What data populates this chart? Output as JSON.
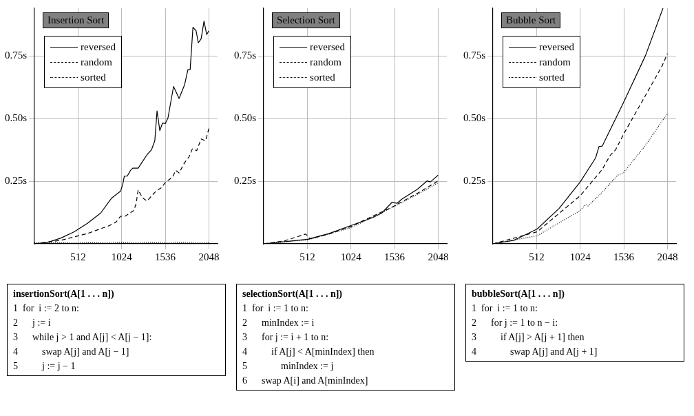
{
  "chart_data": [
    {
      "type": "line",
      "title": "Insertion Sort",
      "xlim": [
        0,
        2150
      ],
      "ylim": [
        0,
        0.94
      ],
      "xticks": [
        512,
        1024,
        1536,
        2048
      ],
      "yticks": [
        {
          "value": 0.25,
          "label": "0.25s"
        },
        {
          "value": 0.5,
          "label": "0.50s"
        },
        {
          "value": 0.75,
          "label": "0.75s"
        }
      ],
      "grid": true,
      "legend": "top left",
      "marker": "none",
      "series": [
        {
          "name": "reversed",
          "color": "#000000",
          "line_style": "solid",
          "x": [
            0,
            156,
            311,
            467,
            622,
            778,
            907,
            1011,
            1037,
            1055,
            1089,
            1128,
            1154,
            1218,
            1270,
            1322,
            1374,
            1413,
            1439,
            1472,
            1504,
            1537,
            1568,
            1633,
            1698,
            1763,
            1802,
            1828,
            1861,
            1898,
            1924,
            1957,
            1991,
            2022,
            2048
          ],
          "values": [
            0,
            0.006,
            0.023,
            0.048,
            0.082,
            0.123,
            0.183,
            0.21,
            0.238,
            0.27,
            0.27,
            0.293,
            0.302,
            0.302,
            0.329,
            0.356,
            0.375,
            0.411,
            0.53,
            0.452,
            0.482,
            0.48,
            0.503,
            0.628,
            0.58,
            0.635,
            0.695,
            0.695,
            0.864,
            0.85,
            0.802,
            0.818,
            0.889,
            0.835,
            0.85
          ]
        },
        {
          "name": "random",
          "color": "#000000",
          "line_style": "dashed",
          "x": [
            0,
            311,
            622,
            881,
            959,
            1011,
            1063,
            1167,
            1193,
            1218,
            1270,
            1322,
            1426,
            1491,
            1542,
            1620,
            1659,
            1698,
            1763,
            1815,
            1854,
            1905,
            1957,
            2009,
            2048
          ],
          "values": [
            0,
            0.014,
            0.041,
            0.073,
            0.087,
            0.11,
            0.11,
            0.133,
            0.16,
            0.215,
            0.183,
            0.171,
            0.21,
            0.224,
            0.247,
            0.265,
            0.293,
            0.283,
            0.324,
            0.347,
            0.379,
            0.372,
            0.418,
            0.411,
            0.46
          ]
        },
        {
          "name": "sorted",
          "color": "#000000",
          "line_style": "dotted",
          "x": [
            0,
            512,
            1024,
            1536,
            2048
          ],
          "values": [
            0.004,
            0.004,
            0.005,
            0.005,
            0.006
          ]
        }
      ],
      "annotations": [
        "insertionSort(A[1 . . . n])",
        "1  for  i := 2 to n:",
        "2      j := i",
        "3      while j > 1 and A[j] < A[j − 1]:",
        "4          swap A[j] and A[j − 1]",
        "5          j := j − 1"
      ]
    },
    {
      "type": "line",
      "title": "Selection Sort",
      "xlim": [
        0,
        2150
      ],
      "ylim": [
        0,
        0.94
      ],
      "xticks": [
        512,
        1024,
        1536,
        2048
      ],
      "yticks": [
        {
          "value": 0.25,
          "label": "0.25s"
        },
        {
          "value": 0.5,
          "label": "0.50s"
        },
        {
          "value": 0.75,
          "label": "0.75s"
        }
      ],
      "grid": true,
      "legend": "top left",
      "marker": "none",
      "series": [
        {
          "name": "reversed",
          "color": "#000000",
          "line_style": "solid",
          "x": [
            0,
            518,
            765,
            1024,
            1283,
            1387,
            1504,
            1568,
            1620,
            1802,
            1918,
            1957,
            2048
          ],
          "values": [
            0,
            0.018,
            0.041,
            0.073,
            0.105,
            0.123,
            0.165,
            0.162,
            0.178,
            0.217,
            0.251,
            0.247,
            0.274
          ]
        },
        {
          "name": "random",
          "color": "#000000",
          "line_style": "dashed",
          "x": [
            0,
            246,
            493,
            544,
            765,
            1024,
            1504,
            1802,
            2048
          ],
          "values": [
            0,
            0.012,
            0.039,
            0.02,
            0.039,
            0.069,
            0.146,
            0.201,
            0.251
          ]
        },
        {
          "name": "sorted",
          "color": "#000000",
          "line_style": "dotted",
          "x": [
            0,
            518,
            1024,
            1504,
            1802,
            2048
          ],
          "values": [
            0,
            0.016,
            0.064,
            0.144,
            0.197,
            0.244
          ]
        }
      ],
      "annotations": [
        "selectionSort(A[1 . . . n])",
        "1  for  i := 1 to n:",
        "2      minIndex := i",
        "3      for j := i + 1 to n:",
        "4          if A[j] < A[minIndex] then",
        "5              minIndex := j",
        "6      swap A[i] and A[minIndex]"
      ]
    },
    {
      "type": "line",
      "title": "Bubble Sort",
      "xlim": [
        0,
        2150
      ],
      "ylim": [
        0,
        0.94
      ],
      "xticks": [
        512,
        1024,
        1536,
        2048
      ],
      "yticks": [
        {
          "value": 0.25,
          "label": "0.25s"
        },
        {
          "value": 0.5,
          "label": "0.50s"
        },
        {
          "value": 0.75,
          "label": "0.75s"
        }
      ],
      "grid": true,
      "legend": "top left",
      "marker": "none",
      "series": [
        {
          "name": "reversed",
          "color": "#000000",
          "line_style": "solid",
          "x": [
            0,
            246,
            518,
            778,
            1024,
            1205,
            1244,
            1283,
            1530,
            1789,
            1996
          ],
          "values": [
            0,
            0.014,
            0.059,
            0.142,
            0.247,
            0.343,
            0.388,
            0.39,
            0.562,
            0.75,
            0.94
          ]
        },
        {
          "name": "random",
          "color": "#000000",
          "line_style": "dashed",
          "x": [
            0,
            518,
            1024,
            1283,
            1374,
            1439,
            1542,
            1802,
            1983,
            2048
          ],
          "values": [
            0,
            0.048,
            0.192,
            0.297,
            0.352,
            0.375,
            0.443,
            0.599,
            0.708,
            0.759
          ]
        },
        {
          "name": "sorted",
          "color": "#000000",
          "line_style": "dotted",
          "x": [
            0,
            518,
            1024,
            1089,
            1115,
            1283,
            1465,
            1530,
            1802,
            1983,
            2048
          ],
          "values": [
            0,
            0.032,
            0.133,
            0.157,
            0.151,
            0.206,
            0.274,
            0.283,
            0.398,
            0.489,
            0.519
          ]
        }
      ],
      "annotations": [
        "bubbleSort(A[1 . . . n])",
        "1  for  i := 1 to n:",
        "2      for j := 1 to n − i:",
        "3          if A[j] > A[j + 1] then",
        "4              swap A[j] and A[j + 1]"
      ]
    }
  ]
}
